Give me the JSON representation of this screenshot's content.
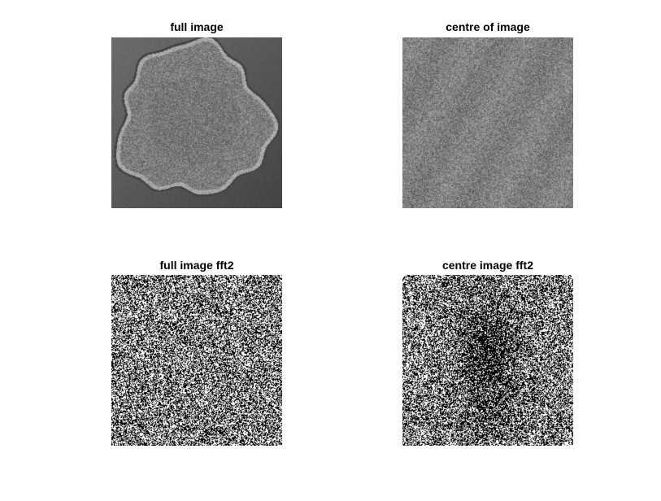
{
  "panels": [
    {
      "key": "full",
      "title": "full image"
    },
    {
      "key": "centre",
      "title": "centre of image"
    },
    {
      "key": "full_fft",
      "title": "full image fft2"
    },
    {
      "key": "centre_fft",
      "title": "centre image fft2"
    }
  ],
  "colors": {
    "background": "#ffffff",
    "microscopy_bg": "#5c5c5c",
    "colony_fill": "#8a8a8a",
    "colony_rim": "#b4b4b4",
    "fft_black": "#000000",
    "fft_white": "#ffffff"
  }
}
